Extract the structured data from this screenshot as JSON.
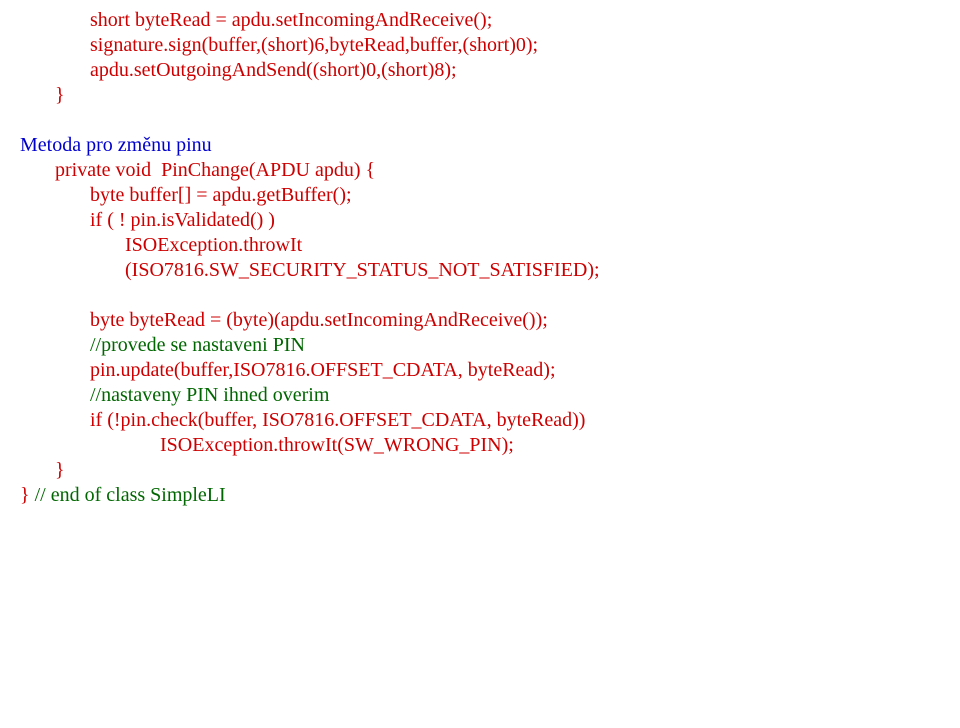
{
  "colors": {
    "red": "#cc0000",
    "blue": "#0000cc",
    "green": "#006600",
    "black": "#000000",
    "background": "#ffffff"
  },
  "typography": {
    "font_family": "Times New Roman",
    "font_size_pt": 15,
    "line_height": 1.25
  },
  "lines": [
    {
      "indent": 2,
      "segs": [
        {
          "c": "red",
          "t": "short byteRead = apdu.setIncomingAndReceive();"
        }
      ]
    },
    {
      "indent": 2,
      "segs": [
        {
          "c": "red",
          "t": "signature.sign(buffer,(short)6,byteRead,buffer,(short)0);"
        }
      ]
    },
    {
      "indent": 2,
      "segs": [
        {
          "c": "red",
          "t": "apdu.setOutgoingAndSend((short)0,(short)8);"
        }
      ]
    },
    {
      "indent": 1,
      "segs": [
        {
          "c": "red",
          "t": "}"
        }
      ]
    },
    {
      "indent": 0,
      "segs": [
        {
          "c": "black",
          "t": ""
        }
      ]
    },
    {
      "indent": 0,
      "segs": [
        {
          "c": "blue",
          "t": "Metoda pro změnu pinu"
        }
      ]
    },
    {
      "indent": 1,
      "segs": [
        {
          "c": "red",
          "t": "private void  PinChange(APDU apdu) {"
        }
      ]
    },
    {
      "indent": 2,
      "segs": [
        {
          "c": "red",
          "t": "byte buffer[] = apdu.getBuffer();"
        }
      ]
    },
    {
      "indent": 2,
      "segs": [
        {
          "c": "red",
          "t": "if ( ! pin.isValidated() )"
        }
      ]
    },
    {
      "indent": 3,
      "segs": [
        {
          "c": "red",
          "t": "ISOException.throwIt"
        }
      ]
    },
    {
      "indent": 3,
      "segs": [
        {
          "c": "red",
          "t": "(ISO7816.SW_SECURITY_STATUS_NOT_SATISFIED);"
        }
      ]
    },
    {
      "indent": 0,
      "segs": [
        {
          "c": "black",
          "t": ""
        }
      ]
    },
    {
      "indent": 2,
      "segs": [
        {
          "c": "red",
          "t": "byte byteRead = (byte)(apdu.setIncomingAndReceive());"
        }
      ]
    },
    {
      "indent": 2,
      "segs": [
        {
          "c": "green",
          "t": "//provede se nastaveni PIN"
        }
      ]
    },
    {
      "indent": 2,
      "segs": [
        {
          "c": "red",
          "t": "pin.update(buffer,ISO7816.OFFSET_CDATA, byteRead);"
        }
      ]
    },
    {
      "indent": 2,
      "segs": [
        {
          "c": "green",
          "t": "//nastaveny PIN ihned overim"
        }
      ]
    },
    {
      "indent": 2,
      "segs": [
        {
          "c": "red",
          "t": "if (!pin.check(buffer, ISO7816.OFFSET_CDATA, byteRead))"
        }
      ]
    },
    {
      "indent": 4,
      "segs": [
        {
          "c": "red",
          "t": "ISOException.throwIt(SW_WRONG_PIN);"
        }
      ]
    },
    {
      "indent": 1,
      "segs": [
        {
          "c": "red",
          "t": "}"
        }
      ]
    },
    {
      "indent": 0,
      "segs": [
        {
          "c": "red",
          "t": "} "
        },
        {
          "c": "green",
          "t": "// end of class SimpleLI"
        }
      ]
    }
  ],
  "indent_unit": "       "
}
